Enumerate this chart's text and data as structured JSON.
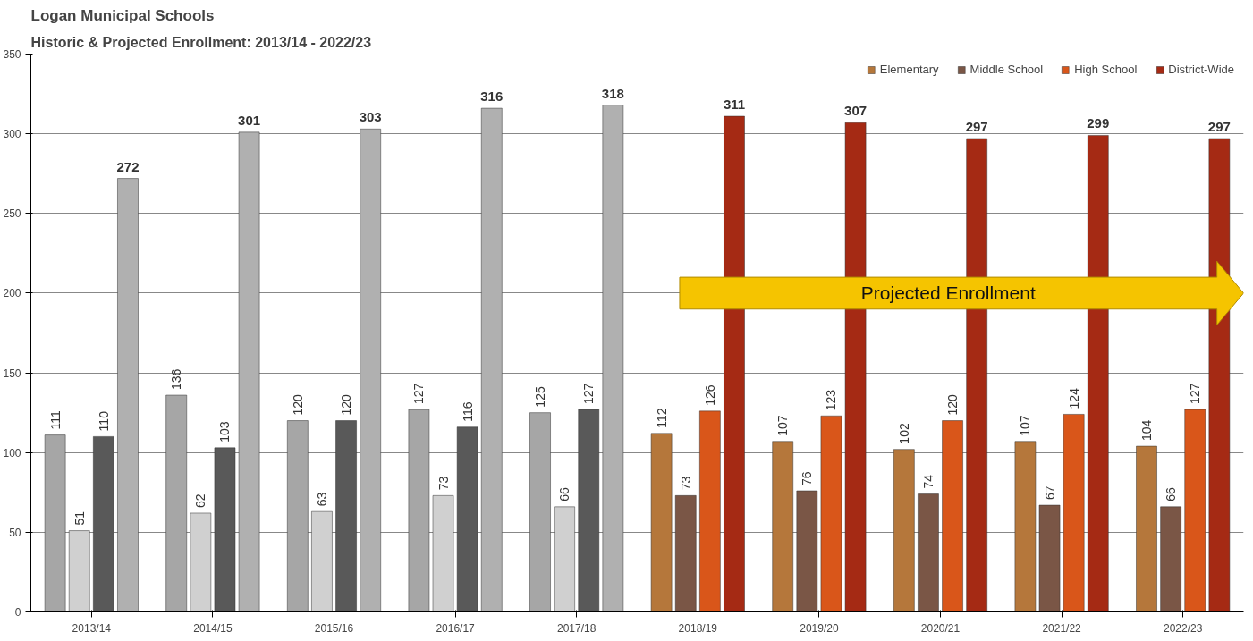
{
  "chart_data": {
    "type": "bar",
    "title": "Logan Municipal Schools",
    "subtitle": "Historic & Projected Enrollment: 2013/14 - 2022/23",
    "categories": [
      "2013/14",
      "2014/15",
      "2015/16",
      "2016/17",
      "2017/18",
      "2018/19",
      "2019/20",
      "2020/21",
      "2021/22",
      "2022/23"
    ],
    "series": [
      {
        "name": "Elementary",
        "colors": [
          "#a6a6a6",
          "#a6a6a6",
          "#a6a6a6",
          "#a6a6a6",
          "#a6a6a6",
          "#b5773b",
          "#b5773b",
          "#b5773b",
          "#b5773b",
          "#b5773b"
        ],
        "values": [
          111,
          136,
          120,
          127,
          125,
          112,
          107,
          102,
          107,
          104
        ]
      },
      {
        "name": "Middle School",
        "colors": [
          "#d0d0d0",
          "#d0d0d0",
          "#d0d0d0",
          "#d0d0d0",
          "#d0d0d0",
          "#7a5646",
          "#7a5646",
          "#7a5646",
          "#7a5646",
          "#7a5646"
        ],
        "values": [
          51,
          62,
          63,
          73,
          66,
          73,
          76,
          74,
          67,
          66
        ]
      },
      {
        "name": "High School",
        "colors": [
          "#595959",
          "#595959",
          "#595959",
          "#595959",
          "#595959",
          "#d9561a",
          "#d9561a",
          "#d9561a",
          "#d9561a",
          "#d9561a"
        ],
        "values": [
          110,
          103,
          120,
          116,
          127,
          126,
          123,
          120,
          124,
          127
        ]
      },
      {
        "name": "District-Wide",
        "colors": [
          "#b0b0b0",
          "#b0b0b0",
          "#b0b0b0",
          "#b0b0b0",
          "#b0b0b0",
          "#a52a14",
          "#a52a14",
          "#a52a14",
          "#a52a14",
          "#a52a14"
        ],
        "values": [
          272,
          301,
          303,
          316,
          318,
          311,
          307,
          297,
          299,
          297
        ]
      }
    ],
    "ylim": [
      0,
      350
    ],
    "yticks": [
      0,
      50,
      100,
      150,
      200,
      250,
      300,
      350
    ],
    "grid": "y",
    "legend": "top right",
    "data_labels": true,
    "annotations": [
      "Projected Enrollment"
    ]
  }
}
